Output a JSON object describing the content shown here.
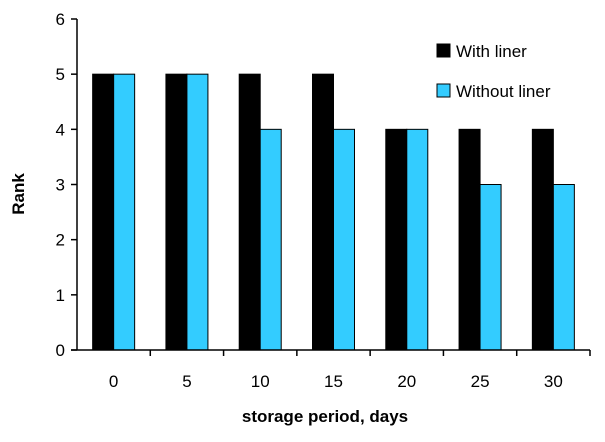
{
  "chart_data": {
    "type": "bar",
    "title": "",
    "xlabel": "storage period, days",
    "ylabel": "Rank",
    "categories": [
      "0",
      "5",
      "10",
      "15",
      "20",
      "25",
      "30"
    ],
    "series": [
      {
        "name": "With liner",
        "values": [
          5,
          5,
          5,
          5,
          4,
          4,
          4
        ],
        "color": "#000000"
      },
      {
        "name": "Without liner",
        "values": [
          5,
          5,
          4,
          4,
          4,
          3,
          3
        ],
        "color": "#33ccff"
      }
    ],
    "ylim": [
      0,
      6
    ],
    "yticks": [
      "0",
      "1",
      "2",
      "3",
      "4",
      "5",
      "6"
    ],
    "grid": false,
    "legend_position": "top-right"
  }
}
